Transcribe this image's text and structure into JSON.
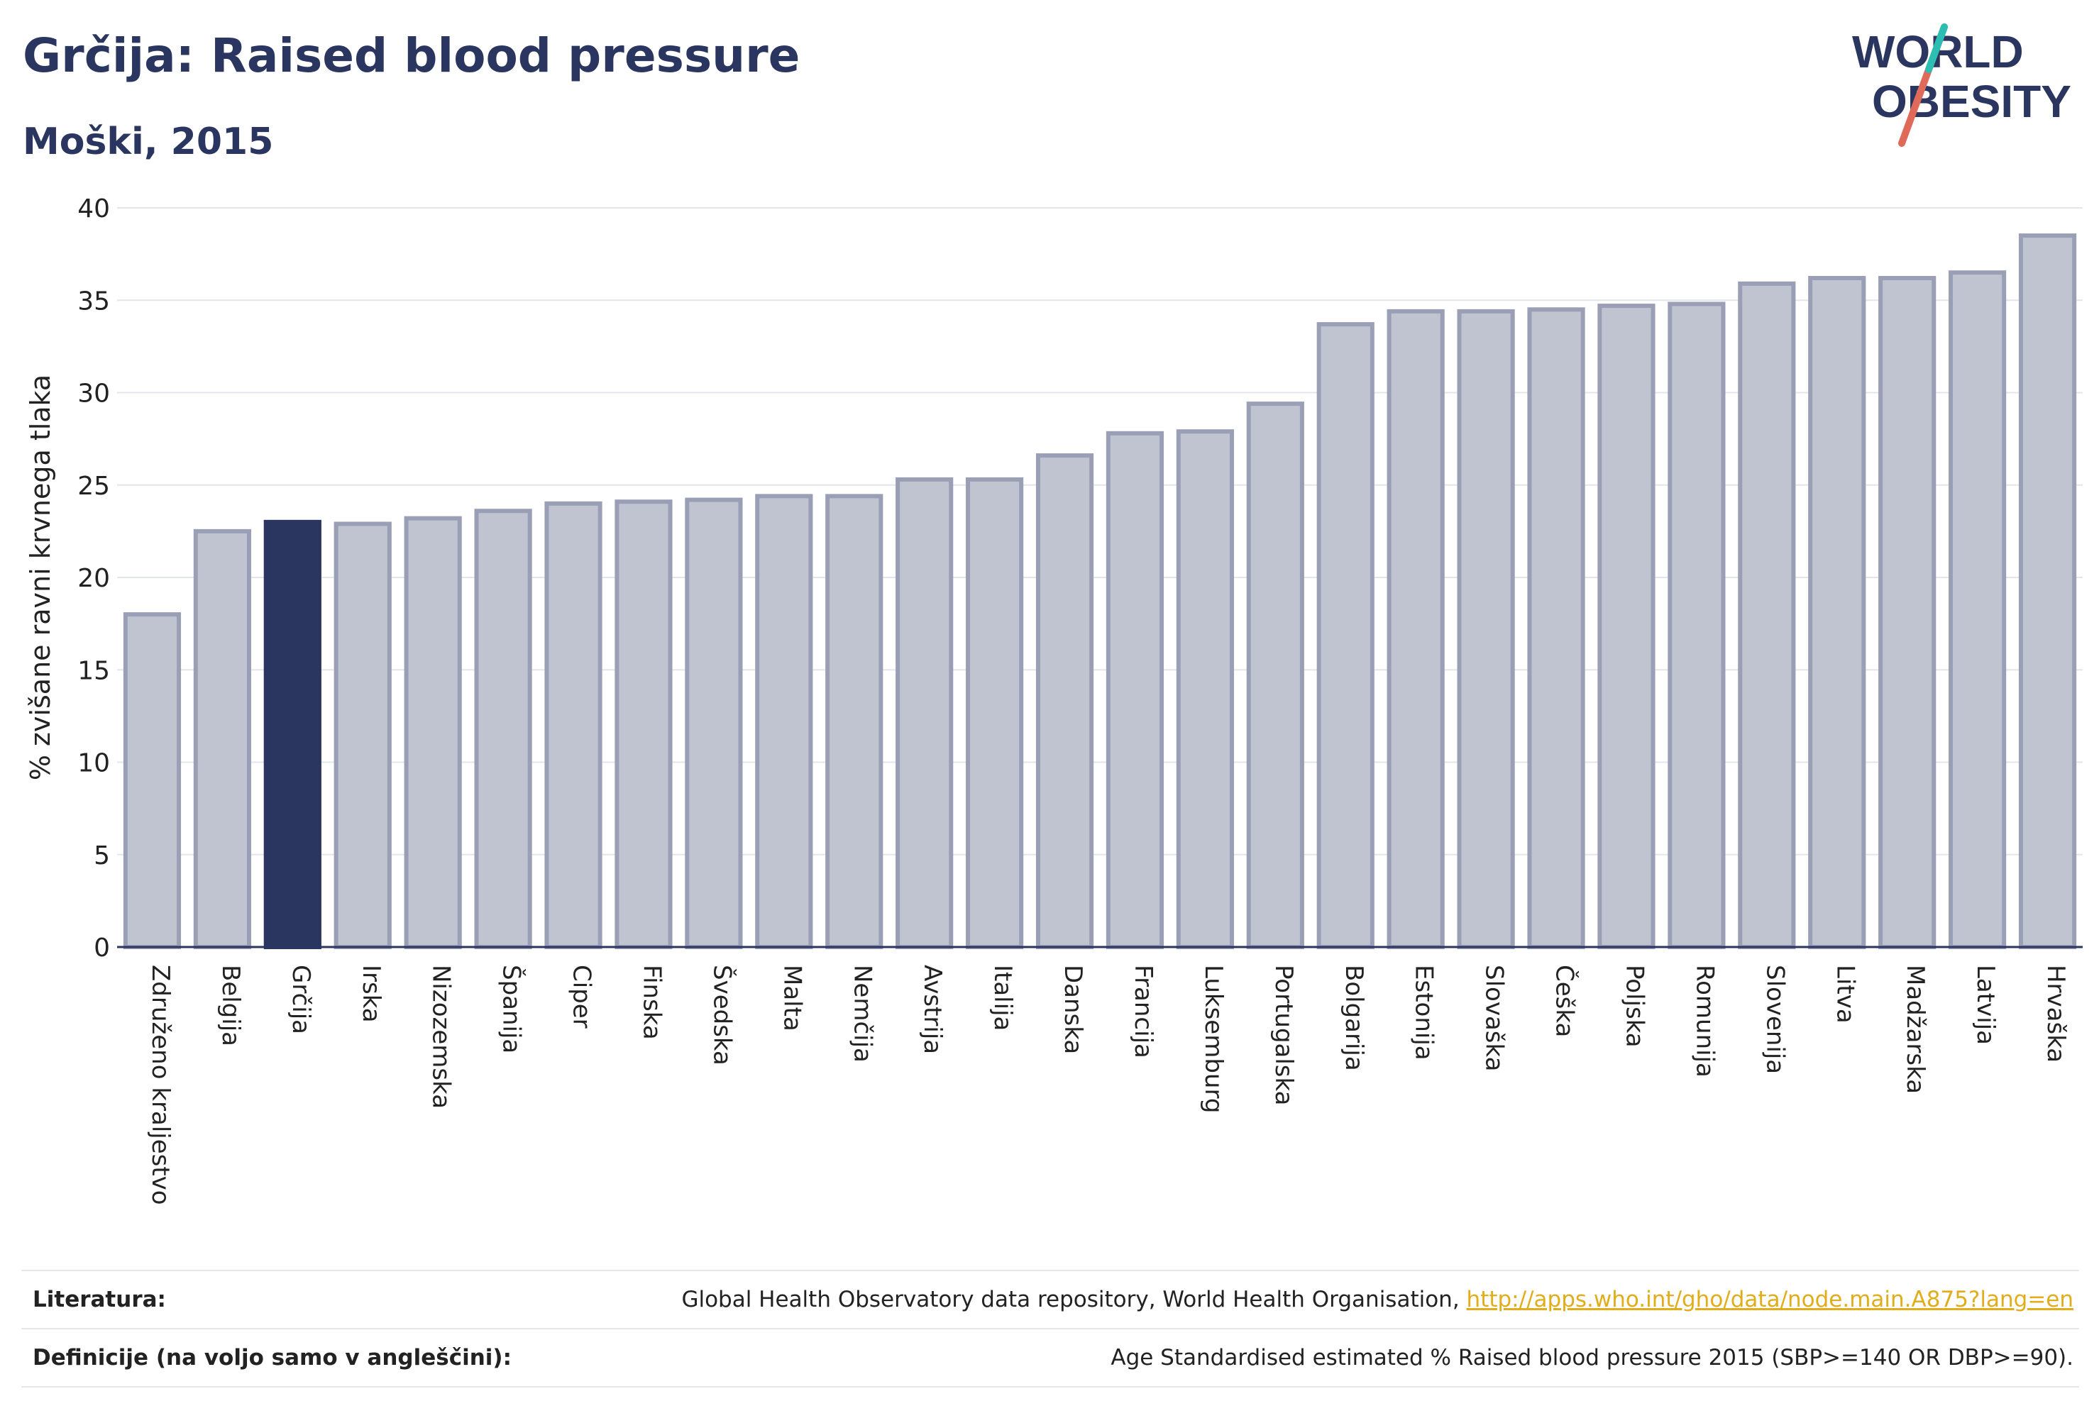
{
  "header": {
    "title": "Grčija: Raised blood pressure",
    "subtitle": "Moški, 2015"
  },
  "logo": {
    "line1": "WORLD",
    "line2": "OBESITY"
  },
  "chart_data": {
    "type": "bar",
    "title": "Grčija: Raised blood pressure",
    "subtitle": "Moški, 2015",
    "ylabel": "% zvišane ravni krvnega tlaka",
    "xlabel": "",
    "ylim": [
      0,
      40
    ],
    "yticks": [
      0,
      5,
      10,
      15,
      20,
      25,
      30,
      35,
      40
    ],
    "grid": true,
    "highlight": "Grčija",
    "colors": {
      "bar": "#c0c3d0",
      "bar_border": "#9a9fb6",
      "highlight": "#2b3660",
      "grid": "#e3e5ec",
      "axis": "#2b3660"
    },
    "categories": [
      "Združeno kraljestvo",
      "Belgija",
      "Grčija",
      "Irska",
      "Nizozemska",
      "Španija",
      "Ciper",
      "Finska",
      "Švedska",
      "Malta",
      "Nemčija",
      "Avstrija",
      "Italija",
      "Danska",
      "Francija",
      "Luksemburg",
      "Portugalska",
      "Bolgarija",
      "Estonija",
      "Slovaška",
      "Češka",
      "Poljska",
      "Romunija",
      "Slovenija",
      "Litva",
      "Madžarska",
      "Latvija",
      "Hrvaška"
    ],
    "values": [
      18.0,
      22.5,
      23.0,
      22.9,
      23.2,
      23.6,
      24.0,
      24.1,
      24.2,
      24.4,
      24.4,
      25.3,
      25.3,
      26.6,
      27.8,
      27.9,
      29.4,
      33.7,
      34.4,
      34.4,
      34.5,
      34.7,
      34.8,
      35.9,
      36.2,
      36.2,
      36.5,
      38.5
    ]
  },
  "footer": {
    "literature_label": "Literatura:",
    "literature_text": "Global Health Observatory data repository, World Health Organisation, ",
    "literature_link": "http://apps.who.int/gho/data/node.main.A875?lang=en",
    "definition_label": "Definicije (na voljo samo v angleščini):",
    "definition_text": "Age Standardised estimated % Raised blood pressure 2015 (SBP>=140 OR DBP>=90)."
  }
}
